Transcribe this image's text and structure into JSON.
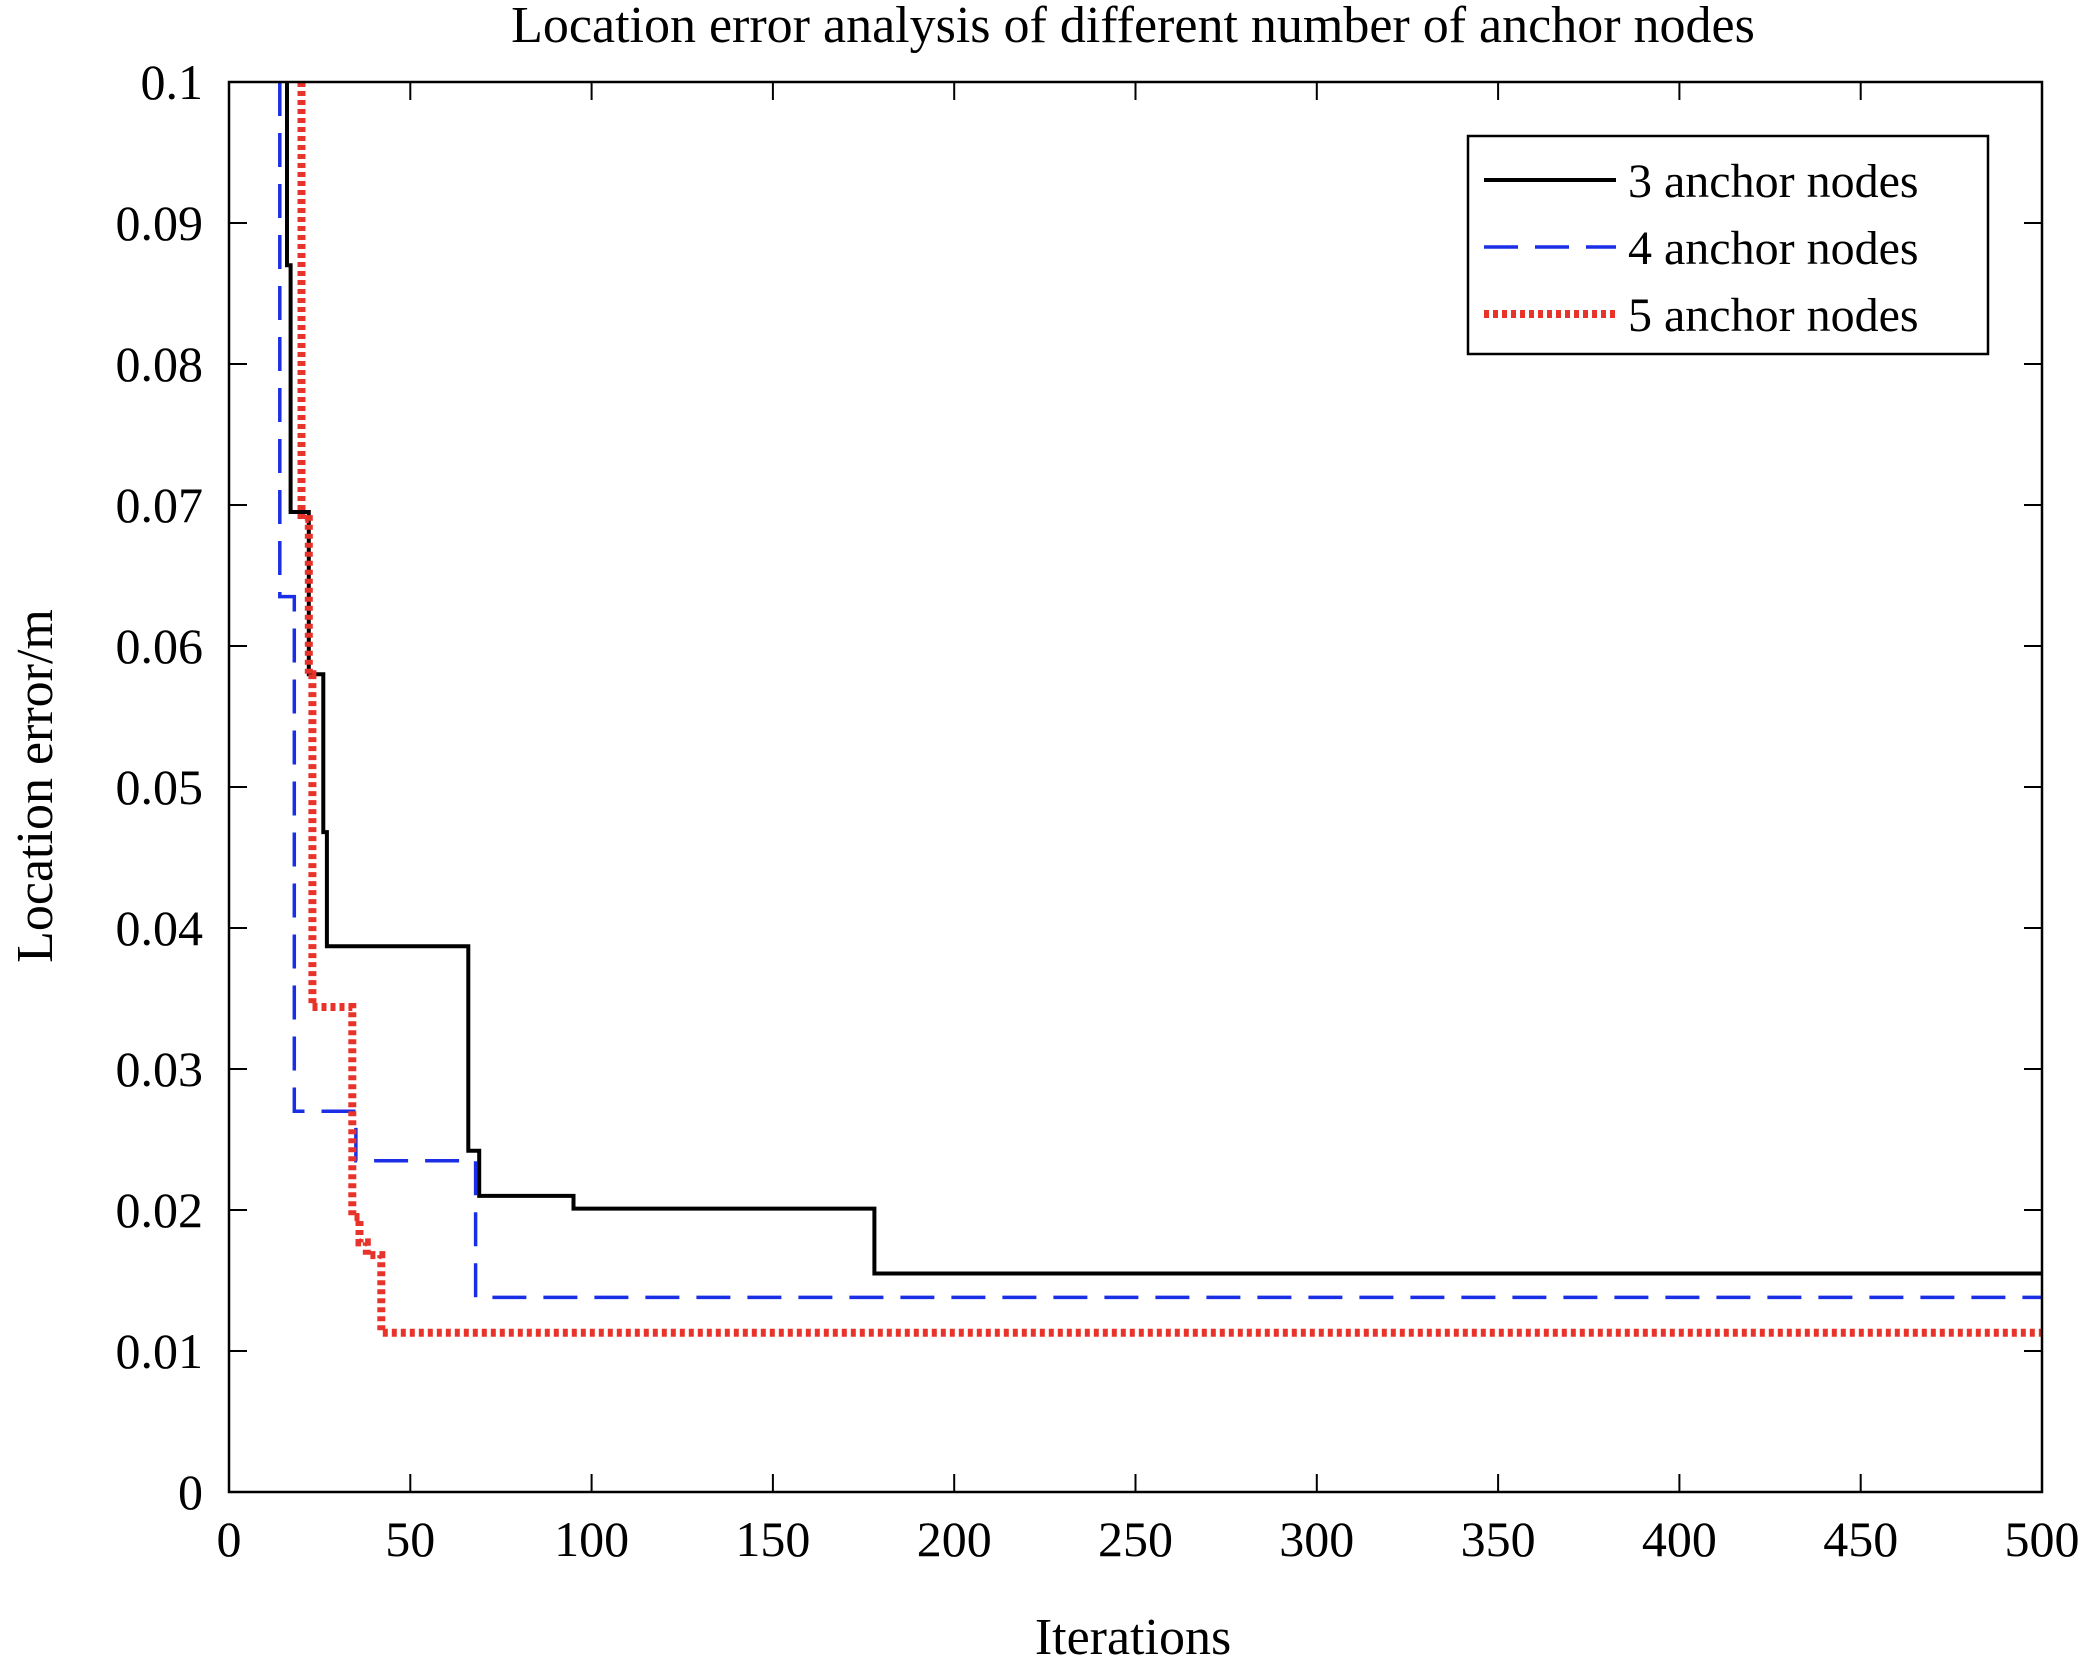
{
  "chart_data": {
    "type": "line",
    "title": "Location error analysis of different number of anchor nodes",
    "xlabel": "Iterations",
    "ylabel": "Location error/m",
    "xlim": [
      0,
      500
    ],
    "ylim": [
      0,
      0.1
    ],
    "x_ticks": [
      0,
      50,
      100,
      150,
      200,
      250,
      300,
      350,
      400,
      450,
      500
    ],
    "y_ticks": [
      0,
      0.01,
      0.02,
      0.03,
      0.04,
      0.05,
      0.06,
      0.07,
      0.08,
      0.09,
      0.1
    ],
    "x_tick_labels": [
      "0",
      "50",
      "100",
      "150",
      "200",
      "250",
      "300",
      "350",
      "400",
      "450",
      "500"
    ],
    "y_tick_labels": [
      "0",
      "0.01",
      "0.02",
      "0.03",
      "0.04",
      "0.05",
      "0.06",
      "0.07",
      "0.08",
      "0.09",
      "0.1"
    ],
    "grid": false,
    "legend_position": "top-right",
    "series": [
      {
        "name": "3 anchor nodes",
        "color": "#000000",
        "style": "solid",
        "x": [
          16,
          16,
          17,
          17,
          19,
          19,
          22,
          22,
          23,
          23,
          26,
          26,
          27,
          27,
          66,
          66,
          67,
          67,
          69,
          69,
          95,
          95,
          178,
          178,
          500
        ],
        "y": [
          0.1,
          0.087,
          0.087,
          0.0695,
          0.0695,
          0.0695,
          0.0695,
          0.058,
          0.058,
          0.058,
          0.058,
          0.0468,
          0.0468,
          0.0387,
          0.0387,
          0.0242,
          0.0242,
          0.0242,
          0.0242,
          0.021,
          0.021,
          0.0201,
          0.0201,
          0.0155,
          0.0155
        ]
      },
      {
        "name": "4 anchor nodes",
        "color": "#1a2ee6",
        "style": "dashed",
        "x": [
          14,
          14,
          16,
          16,
          18,
          18,
          35,
          35,
          68,
          68,
          500
        ],
        "y": [
          0.1,
          0.0635,
          0.0635,
          0.0635,
          0.0635,
          0.027,
          0.027,
          0.0235,
          0.0235,
          0.0138,
          0.0138
        ]
      },
      {
        "name": "5 anchor nodes",
        "color": "#e8332a",
        "style": "dotted",
        "x": [
          20,
          20,
          22,
          22,
          23,
          23,
          34,
          34,
          36,
          36,
          38,
          38,
          42,
          42,
          500
        ],
        "y": [
          0.1,
          0.069,
          0.069,
          0.058,
          0.058,
          0.0344,
          0.0344,
          0.0195,
          0.0195,
          0.0177,
          0.0177,
          0.0168,
          0.0168,
          0.0113,
          0.0113
        ]
      }
    ]
  }
}
